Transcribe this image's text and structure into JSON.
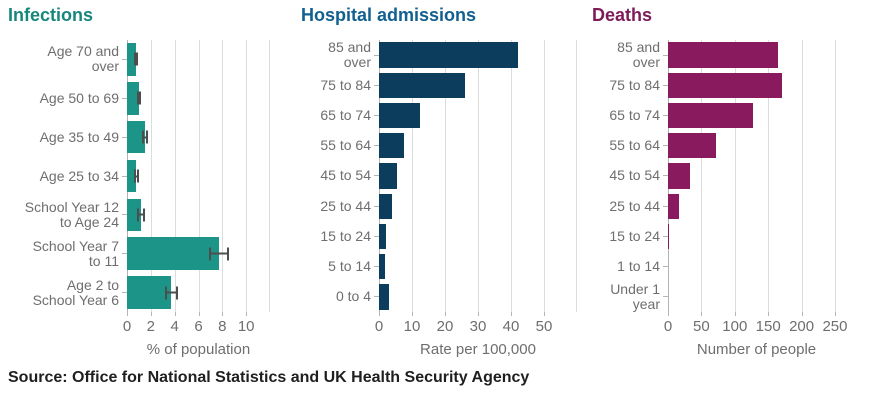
{
  "page": {
    "source_note": "Source: Office for National Statistics and UK Health Security Agency"
  },
  "chart_data": [
    {
      "type": "bar",
      "orientation": "horizontal",
      "title": "Infections",
      "xlabel": "% of population",
      "colors": {
        "bar": "#1D9488",
        "title": "#17877B",
        "error_bar": "#4d4d4d"
      },
      "xlim": [
        0,
        12
      ],
      "xticks": [
        0,
        2,
        4,
        6,
        8,
        10
      ],
      "grid": true,
      "edge_gridline": true,
      "error_bars": true,
      "bars": [
        {
          "label": "Age 70 and over",
          "label_lines": [
            "Age 70 and",
            "over"
          ],
          "value": 0.75,
          "ci": [
            0.55,
            0.95
          ]
        },
        {
          "label": "Age 50 to 69",
          "label_lines": [
            "Age 50 to 69"
          ],
          "value": 1.0,
          "ci": [
            0.8,
            1.2
          ]
        },
        {
          "label": "Age 35 to 49",
          "label_lines": [
            "Age 35 to 49"
          ],
          "value": 1.55,
          "ci": [
            1.3,
            1.8
          ]
        },
        {
          "label": "Age 25 to 34",
          "label_lines": [
            "Age 25 to 34"
          ],
          "value": 0.75,
          "ci": [
            0.55,
            1.0
          ]
        },
        {
          "label": "School Year 12 to Age 24",
          "label_lines": [
            "School Year 12",
            "to Age 24"
          ],
          "value": 1.15,
          "ci": [
            0.85,
            1.55
          ]
        },
        {
          "label": "School Year 7 to 11",
          "label_lines": [
            "School Year 7",
            "to 11"
          ],
          "value": 7.7,
          "ci": [
            6.9,
            8.6
          ]
        },
        {
          "label": "Age 2 to School Year 6",
          "label_lines": [
            "Age 2 to",
            "School Year 6"
          ],
          "value": 3.7,
          "ci": [
            3.2,
            4.3
          ]
        }
      ]
    },
    {
      "type": "bar",
      "orientation": "horizontal",
      "title": "Hospital admissions",
      "xlabel": "Rate per 100,000",
      "colors": {
        "bar": "#0D3D5C",
        "title": "#12608F"
      },
      "xlim": [
        0,
        60
      ],
      "xticks": [
        0,
        10,
        20,
        30,
        40,
        50
      ],
      "grid": true,
      "edge_gridline": true,
      "error_bars": false,
      "bars": [
        {
          "label": "85 and over",
          "label_lines": [
            "85 and",
            "over"
          ],
          "value": 42
        },
        {
          "label": "75 to 84",
          "label_lines": [
            "75 to 84"
          ],
          "value": 26
        },
        {
          "label": "65 to 74",
          "label_lines": [
            "65 to 74"
          ],
          "value": 12.5
        },
        {
          "label": "55 to 64",
          "label_lines": [
            "55 to 64"
          ],
          "value": 7.5
        },
        {
          "label": "45 to 54",
          "label_lines": [
            "45 to 54"
          ],
          "value": 5.5
        },
        {
          "label": "25 to 44",
          "label_lines": [
            "25 to 44"
          ],
          "value": 4
        },
        {
          "label": "15 to 24",
          "label_lines": [
            "15 to 24"
          ],
          "value": 2
        },
        {
          "label": "5 to 14",
          "label_lines": [
            "5 to 14"
          ],
          "value": 1.8
        },
        {
          "label": "0 to 4",
          "label_lines": [
            "0 to 4"
          ],
          "value": 3
        }
      ]
    },
    {
      "type": "bar",
      "orientation": "horizontal",
      "title": "Deaths",
      "xlabel": "Number of people",
      "colors": {
        "bar": "#8A1A5E",
        "title": "#7D1A57"
      },
      "xlim": [
        0,
        265
      ],
      "xticks": [
        0,
        50,
        100,
        150,
        200,
        250
      ],
      "grid": true,
      "edge_gridline": false,
      "error_bars": false,
      "bars": [
        {
          "label": "85 and over",
          "label_lines": [
            "85 and",
            "over"
          ],
          "value": 165
        },
        {
          "label": "75 to 84",
          "label_lines": [
            "75 to 84"
          ],
          "value": 170
        },
        {
          "label": "65 to 74",
          "label_lines": [
            "65 to 74"
          ],
          "value": 127
        },
        {
          "label": "55 to 64",
          "label_lines": [
            "55 to 64"
          ],
          "value": 72
        },
        {
          "label": "45 to 54",
          "label_lines": [
            "45 to 54"
          ],
          "value": 33
        },
        {
          "label": "25 to 44",
          "label_lines": [
            "25 to 44"
          ],
          "value": 17
        },
        {
          "label": "15 to 24",
          "label_lines": [
            "15 to 24"
          ],
          "value": 2
        },
        {
          "label": "1 to 14",
          "label_lines": [
            "1 to 14"
          ],
          "value": 0
        },
        {
          "label": "Under 1 year",
          "label_lines": [
            "Under 1",
            "year"
          ],
          "value": 0
        }
      ]
    }
  ]
}
